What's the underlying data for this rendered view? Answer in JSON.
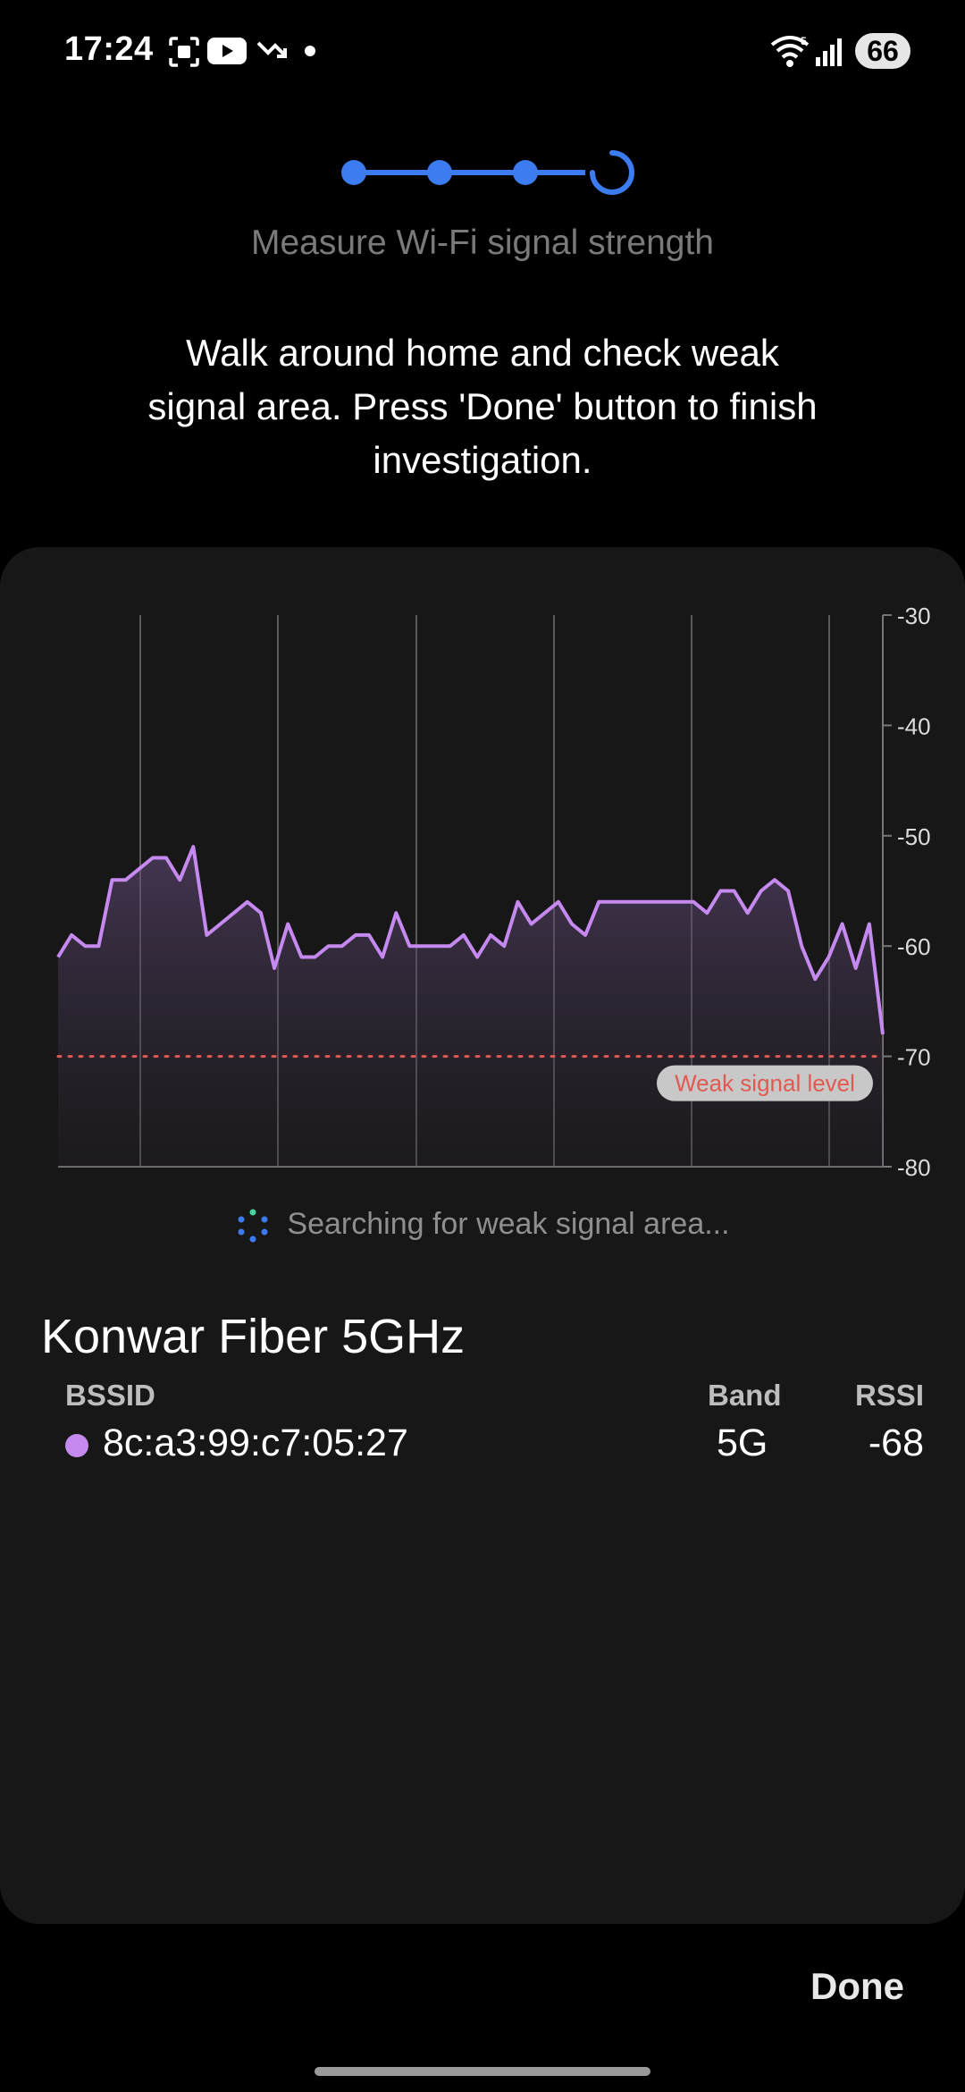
{
  "status_bar": {
    "time": "17:24",
    "battery": "66",
    "icons": [
      "screenshot-icon",
      "youtube-icon",
      "missed-call-icon",
      "dot-icon",
      "wifi-icon",
      "signal-icon"
    ]
  },
  "stepper": {
    "total_steps": 4,
    "current_step": 4,
    "accent_color": "#3c7cf0"
  },
  "step_title": "Measure Wi-Fi signal strength",
  "instruction": {
    "line1": "Walk around home and check weak",
    "line2": "signal area. Press 'Done' button to finish",
    "line3": "investigation."
  },
  "chart_data": {
    "type": "area",
    "y_ticks": [
      "-30",
      "-40",
      "-50",
      "-60",
      "-70",
      "-80"
    ],
    "ylim": [
      -80,
      -30
    ],
    "y_axis_side": "right",
    "vertical_gridlines": 6,
    "threshold": {
      "value": -70,
      "label": "Weak signal level",
      "color": "#e05a52"
    },
    "series": [
      {
        "color": "#c689f0",
        "values": [
          -61,
          -59,
          -60,
          -60,
          -54,
          -54,
          -53,
          -52,
          -52,
          -54,
          -51,
          -59,
          -58,
          -57,
          -56,
          -57,
          -62,
          -58,
          -61,
          -61,
          -60,
          -60,
          -59,
          -59,
          -61,
          -57,
          -60,
          -60,
          -60,
          -60,
          -59,
          -61,
          -59,
          -60,
          -56,
          -58,
          -57,
          -56,
          -58,
          -59,
          -56,
          -56,
          -56,
          -56,
          -56,
          -56,
          -56,
          -56,
          -57,
          -55,
          -55,
          -57,
          -55,
          -54,
          -55,
          -60,
          -63,
          -61,
          -58,
          -62,
          -58,
          -68
        ]
      }
    ]
  },
  "scan_status": "Searching for weak signal area...",
  "network": {
    "ssid": "Konwar Fiber 5GHz",
    "headers": {
      "bssid": "BSSID",
      "band": "Band",
      "rssi": "RSSI"
    },
    "bssid": "8c:a3:99:c7:05:27",
    "band": "5G",
    "rssi": "-68",
    "dot_color": "#c689f0"
  },
  "done_label": "Done"
}
